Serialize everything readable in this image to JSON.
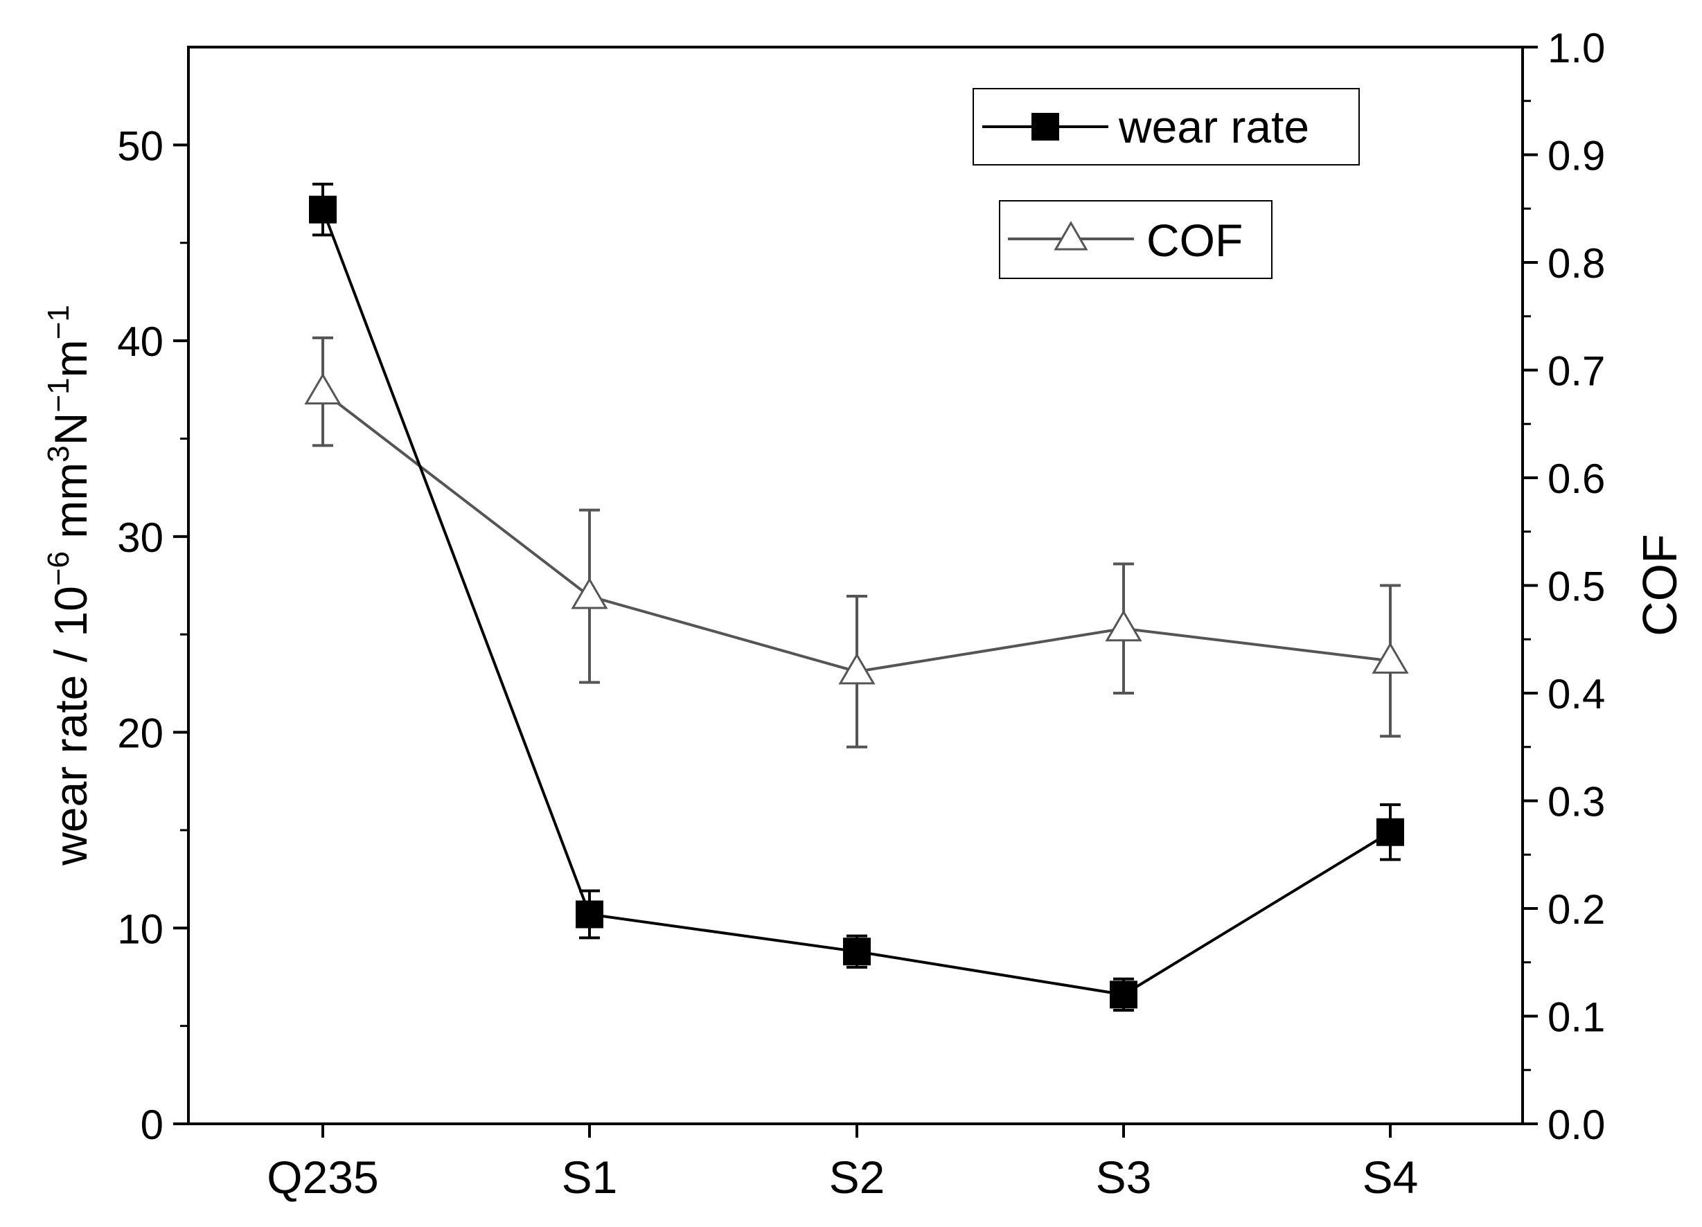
{
  "chart_data": {
    "type": "line",
    "categories": [
      "Q235",
      "S1",
      "S2",
      "S3",
      "S4"
    ],
    "left_axis": {
      "label": "wear rate / 10",
      "label_exp1": "−6",
      "label_mid": " mm",
      "label_exp2": "3",
      "label_n": "N",
      "label_exp3": "−1",
      "label_m": "m",
      "label_exp4": "−1",
      "ylim": [
        0,
        55
      ],
      "ticks": [
        0,
        10,
        20,
        30,
        40,
        50
      ],
      "minor_ticks": [
        5,
        15,
        25,
        35,
        45
      ]
    },
    "right_axis": {
      "label": "COF",
      "ylim": [
        0.0,
        1.0
      ],
      "ticks": [
        "0.0",
        "0.1",
        "0.2",
        "0.3",
        "0.4",
        "0.5",
        "0.6",
        "0.7",
        "0.8",
        "0.9",
        "1.0"
      ],
      "tick_values": [
        0.0,
        0.1,
        0.2,
        0.3,
        0.4,
        0.5,
        0.6,
        0.7,
        0.8,
        0.9,
        1.0
      ]
    },
    "series": [
      {
        "name": "wear rate",
        "axis": "left",
        "marker": "filled-square",
        "color": "#000000",
        "values": [
          46.7,
          10.7,
          8.8,
          6.6,
          14.9
        ],
        "errors": [
          1.3,
          1.2,
          0.8,
          0.8,
          1.4
        ]
      },
      {
        "name": "COF",
        "axis": "right",
        "marker": "open-triangle",
        "color": "#555555",
        "values": [
          0.68,
          0.49,
          0.42,
          0.46,
          0.43
        ],
        "errors": [
          0.05,
          0.08,
          0.07,
          0.06,
          0.07
        ]
      }
    ],
    "legend": [
      "wear rate",
      "COF"
    ],
    "legend_position": "top-right"
  }
}
